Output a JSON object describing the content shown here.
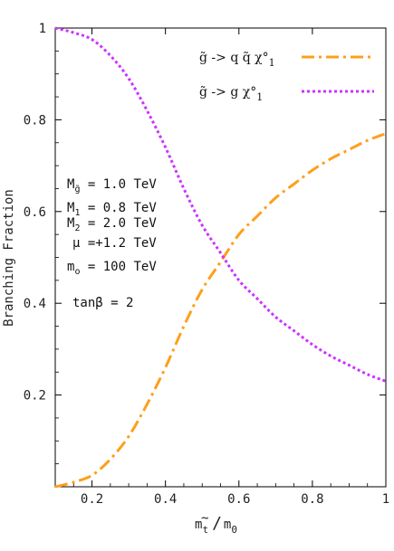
{
  "chart_data": {
    "type": "line",
    "xlabel": "m̃t / m0",
    "xlabel_parts": {
      "num": "m",
      "num_tilde": "~",
      "num_sub": "t",
      "slash": "/",
      "den": "m",
      "den_sub": "0"
    },
    "ylabel": "Branching Fraction",
    "xlim": [
      0.1,
      1.0
    ],
    "ylim": [
      0.0,
      1.0
    ],
    "x_ticks": [
      0.2,
      0.4,
      0.6,
      0.8,
      1.0
    ],
    "x_tick_labels": [
      "0.2",
      "0.4",
      "0.6",
      "0.8",
      "1"
    ],
    "y_ticks": [
      0.2,
      0.4,
      0.6,
      0.8,
      1.0
    ],
    "y_tick_labels": [
      "0.2",
      "0.4",
      "0.6",
      "0.8",
      "1"
    ],
    "grid": false,
    "legend_position": "top-right",
    "series": [
      {
        "name": "g̃ -> q q̃ χ°₁",
        "color": "#ff9f1a",
        "style": "dash-dot",
        "x": [
          0.1,
          0.15,
          0.2,
          0.25,
          0.3,
          0.35,
          0.4,
          0.45,
          0.5,
          0.55,
          0.6,
          0.65,
          0.7,
          0.75,
          0.8,
          0.85,
          0.9,
          0.95,
          1.0
        ],
        "values": [
          0.0,
          0.01,
          0.025,
          0.06,
          0.11,
          0.18,
          0.26,
          0.35,
          0.43,
          0.49,
          0.55,
          0.59,
          0.63,
          0.66,
          0.69,
          0.715,
          0.735,
          0.755,
          0.77
        ]
      },
      {
        "name": "g̃ -> g χ°₁",
        "color": "#cc33ff",
        "style": "dotted",
        "x": [
          0.1,
          0.15,
          0.2,
          0.25,
          0.3,
          0.35,
          0.4,
          0.45,
          0.5,
          0.55,
          0.6,
          0.65,
          0.7,
          0.75,
          0.8,
          0.85,
          0.9,
          0.95,
          1.0
        ],
        "values": [
          1.0,
          0.99,
          0.975,
          0.94,
          0.89,
          0.82,
          0.74,
          0.65,
          0.57,
          0.51,
          0.45,
          0.41,
          0.37,
          0.34,
          0.31,
          0.285,
          0.265,
          0.245,
          0.23
        ]
      }
    ],
    "legend_entries": [
      {
        "main": "g̃ -> q q̃ χ°",
        "sub": "1"
      },
      {
        "main": "g̃ -> g χ°",
        "sub": "1"
      }
    ],
    "annotations": [
      {
        "main": "M",
        "sub": "g̃",
        "rest": " = 1.0 TeV"
      },
      {
        "main": "M",
        "sub": "1",
        "rest": " = 0.8 TeV"
      },
      {
        "main": "M",
        "sub": "2",
        "rest": " = 2.0 TeV"
      },
      {
        "main": "μ",
        "sub": "",
        "rest": " =+1.2 TeV"
      },
      {
        "main": "m",
        "sub": "o",
        "rest": " = 100 TeV"
      },
      {
        "main": "tanβ",
        "sub": "",
        "rest": " = 2"
      }
    ]
  }
}
